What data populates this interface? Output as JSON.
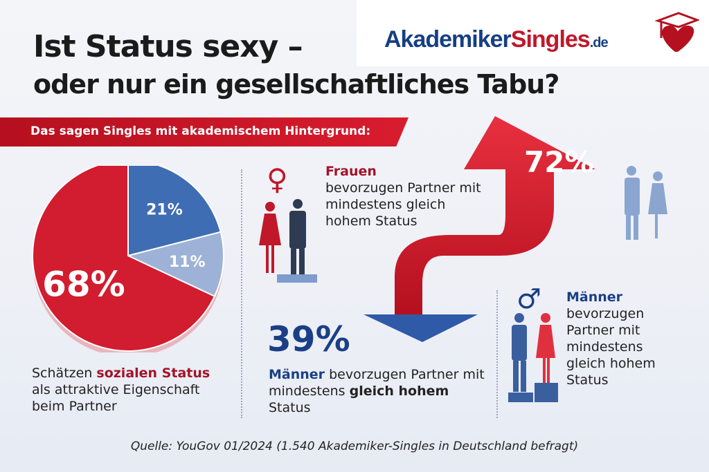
{
  "title_line1": "Ist Status sexy –",
  "title_line2": "oder nur ein gesellschaftliches Tabu?",
  "logo": {
    "part1": "Akademiker",
    "part2": "Singles",
    "part3": ".de"
  },
  "banner": "Das sagen Singles mit akademischem Hintergrund:",
  "chart_data": {
    "type": "pie",
    "values": [
      68,
      21,
      11
    ],
    "labels": [
      "68%",
      "21%",
      "11%"
    ],
    "colors": [
      "#d21c2f",
      "#3f6db3",
      "#9db2d6"
    ]
  },
  "pie_caption": {
    "pre": "Schätzen ",
    "highlight": "sozialen Status",
    "post": "als attraktive Eigenschaft beim Partner"
  },
  "frauen": {
    "icon": "female-symbol-icon",
    "head": "Frauen",
    "body": "bevorzugen Partner mit mindestens gleich hohem Status"
  },
  "stat_up": {
    "value": "72%",
    "icon": "arrow-up-icon"
  },
  "stat_down": {
    "value": "39%",
    "icon": "arrow-down-icon"
  },
  "maenner_bottom": {
    "head": "Männer",
    "mid": " bevorzugen Partner mit mindestens ",
    "bold": "gleich hohem",
    "tail": " Status"
  },
  "maenner_right": {
    "icon": "male-symbol-icon",
    "head": "Männer",
    "body": "bevorzugen Partner mit mindestens gleich hohem Status"
  },
  "source": "Quelle: YouGov 01/2024 (1.540 Akademiker-Singles in Deutschland befragt)"
}
